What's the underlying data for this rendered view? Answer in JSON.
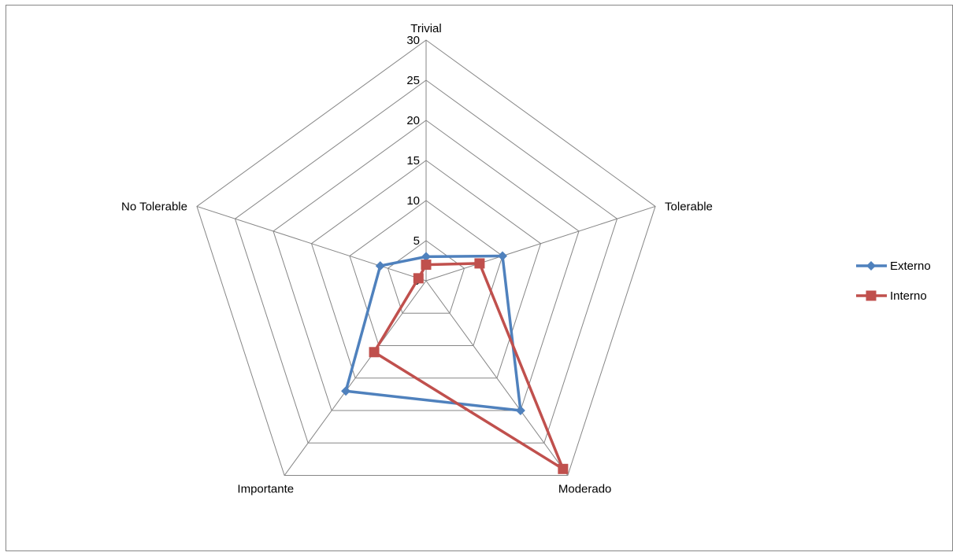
{
  "chart_data": {
    "type": "radar",
    "categories": [
      "Trivial",
      "Tolerable",
      "Moderado",
      "Importante",
      "No Tolerable"
    ],
    "series": [
      {
        "name": "Externo",
        "values": [
          3,
          10,
          20,
          17,
          6
        ],
        "color": "#4f81bd",
        "marker": "diamond"
      },
      {
        "name": "Interno",
        "values": [
          2,
          7,
          29,
          11,
          1
        ],
        "color": "#c0504d",
        "marker": "square"
      }
    ],
    "rlim": [
      0,
      30
    ],
    "ticks": [
      0,
      5,
      10,
      15,
      20,
      25,
      30
    ],
    "grid": true,
    "legend": "right",
    "grid_color": "#868686"
  }
}
